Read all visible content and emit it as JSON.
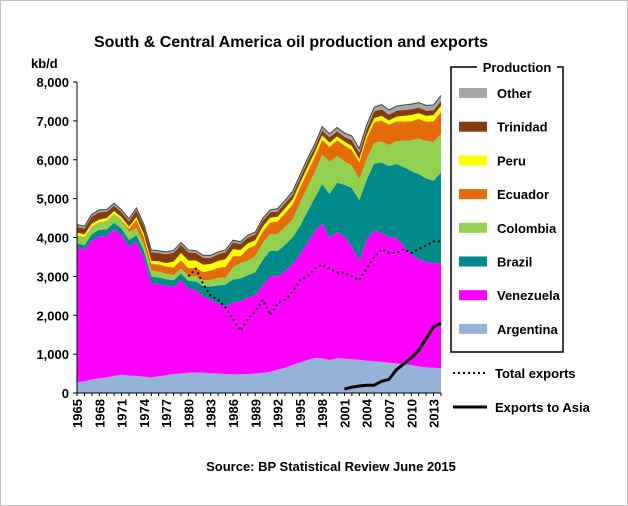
{
  "chart_data": {
    "type": "area",
    "title": "South & Central America oil production and exports",
    "ylabel": "kb/d",
    "ylim": [
      0,
      8000
    ],
    "yticks": [
      "0",
      "1,000",
      "2,000",
      "3,000",
      "4,000",
      "5,000",
      "6,000",
      "7,000",
      "8,000"
    ],
    "x": [
      1965,
      1966,
      1967,
      1968,
      1969,
      1970,
      1971,
      1972,
      1973,
      1974,
      1975,
      1976,
      1977,
      1978,
      1979,
      1980,
      1981,
      1982,
      1983,
      1984,
      1985,
      1986,
      1987,
      1988,
      1989,
      1990,
      1991,
      1992,
      1993,
      1994,
      1995,
      1996,
      1997,
      1998,
      1999,
      2000,
      2001,
      2002,
      2003,
      2004,
      2005,
      2006,
      2007,
      2008,
      2009,
      2010,
      2011,
      2012,
      2013,
      2014
    ],
    "xticks": [
      "1965",
      "1968",
      "1971",
      "1974",
      "1977",
      "1980",
      "1983",
      "1986",
      "1989",
      "1992",
      "1995",
      "1998",
      "2001",
      "2004",
      "2007",
      "2010",
      "2013"
    ],
    "legend_title": "Production",
    "legend_position": "right",
    "grid": false,
    "series": [
      {
        "name": "Argentina",
        "color": "#95b3d7",
        "values": [
          280,
          300,
          350,
          380,
          400,
          440,
          470,
          450,
          440,
          420,
          400,
          430,
          460,
          490,
          500,
          520,
          530,
          520,
          510,
          500,
          490,
          480,
          480,
          490,
          500,
          520,
          540,
          600,
          650,
          720,
          780,
          850,
          900,
          890,
          850,
          900,
          880,
          870,
          860,
          830,
          820,
          800,
          780,
          760,
          740,
          720,
          680,
          660,
          650,
          640
        ]
      },
      {
        "name": "Venezuela",
        "color": "#ff00ff",
        "values": [
          3470,
          3400,
          3580,
          3650,
          3640,
          3770,
          3590,
          3320,
          3450,
          3060,
          2420,
          2370,
          2300,
          2240,
          2400,
          2170,
          2120,
          1960,
          1890,
          1800,
          1740,
          1850,
          1880,
          1970,
          2010,
          2250,
          2470,
          2400,
          2490,
          2590,
          2790,
          3010,
          3250,
          3480,
          3130,
          3240,
          3140,
          2900,
          2550,
          3120,
          3360,
          3320,
          3230,
          3230,
          3040,
          2850,
          2760,
          2710,
          2700,
          2690
        ]
      },
      {
        "name": "Brazil",
        "color": "#008b8b",
        "values": [
          100,
          100,
          160,
          170,
          170,
          170,
          170,
          170,
          170,
          180,
          180,
          170,
          170,
          170,
          170,
          190,
          220,
          270,
          340,
          470,
          560,
          590,
          590,
          570,
          600,
          650,
          650,
          650,
          670,
          690,
          720,
          800,
          870,
          1000,
          1140,
          1270,
          1340,
          1500,
          1550,
          1540,
          1720,
          1810,
          1830,
          1900,
          2030,
          2140,
          2190,
          2150,
          2110,
          2350
        ]
      },
      {
        "name": "Colombia",
        "color": "#92d050",
        "values": [
          200,
          200,
          190,
          180,
          210,
          220,
          220,
          200,
          190,
          170,
          160,
          150,
          140,
          130,
          130,
          130,
          140,
          150,
          170,
          190,
          180,
          310,
          390,
          380,
          410,
          440,
          430,
          440,
          460,
          460,
          590,
          630,
          660,
          760,
          830,
          690,
          600,
          580,
          550,
          530,
          530,
          540,
          540,
          590,
          680,
          790,
          920,
          960,
          1000,
          990
        ]
      },
      {
        "name": "Ecuador",
        "color": "#e46c0a",
        "values": [
          10,
          10,
          10,
          10,
          10,
          10,
          10,
          80,
          210,
          180,
          160,
          190,
          180,
          200,
          210,
          200,
          210,
          210,
          240,
          260,
          280,
          290,
          180,
          300,
          280,
          290,
          300,
          320,
          350,
          380,
          390,
          390,
          390,
          380,
          380,
          400,
          410,
          400,
          420,
          530,
          530,
          540,
          520,
          510,
          490,
          490,
          500,
          500,
          530,
          560
        ]
      },
      {
        "name": "Peru",
        "color": "#ffff00",
        "values": [
          70,
          70,
          70,
          70,
          70,
          70,
          60,
          60,
          70,
          80,
          80,
          80,
          90,
          150,
          190,
          200,
          190,
          190,
          170,
          180,
          190,
          180,
          160,
          140,
          130,
          130,
          120,
          120,
          130,
          130,
          120,
          120,
          120,
          120,
          110,
          100,
          100,
          100,
          90,
          90,
          110,
          120,
          110,
          120,
          150,
          160,
          150,
          150,
          160,
          160
        ]
      },
      {
        "name": "Trinidad",
        "color": "#843c0c",
        "values": [
          140,
          150,
          180,
          190,
          160,
          140,
          130,
          140,
          170,
          190,
          220,
          210,
          230,
          230,
          210,
          210,
          190,
          180,
          160,
          170,
          180,
          170,
          150,
          150,
          150,
          150,
          140,
          140,
          130,
          130,
          130,
          140,
          130,
          130,
          140,
          130,
          120,
          150,
          160,
          150,
          170,
          170,
          150,
          150,
          150,
          150,
          140,
          130,
          120,
          120
        ]
      },
      {
        "name": "Other",
        "color": "#a6a6a6",
        "values": [
          60,
          60,
          60,
          60,
          60,
          60,
          60,
          60,
          60,
          60,
          60,
          60,
          60,
          60,
          60,
          60,
          60,
          60,
          60,
          60,
          60,
          60,
          60,
          60,
          60,
          60,
          60,
          70,
          70,
          80,
          80,
          80,
          80,
          90,
          90,
          100,
          100,
          110,
          110,
          110,
          110,
          120,
          120,
          120,
          130,
          130,
          130,
          140,
          140,
          140
        ]
      }
    ],
    "lines": [
      {
        "name": "Total exports",
        "style": "dotted",
        "color": "#000000",
        "values": [
          null,
          null,
          null,
          null,
          null,
          null,
          null,
          null,
          null,
          null,
          null,
          null,
          null,
          null,
          null,
          3000,
          3200,
          2800,
          2500,
          2400,
          2200,
          1900,
          1600,
          1900,
          2100,
          2400,
          2000,
          2300,
          2400,
          2600,
          2900,
          3000,
          3200,
          3300,
          3200,
          3100,
          3100,
          3000,
          2900,
          3200,
          3500,
          3700,
          3600,
          3600,
          3700,
          3600,
          3700,
          3800,
          3900,
          3900
        ]
      },
      {
        "name": "Exports to Asia",
        "style": "solid",
        "color": "#000000",
        "values": [
          null,
          null,
          null,
          null,
          null,
          null,
          null,
          null,
          null,
          null,
          null,
          null,
          null,
          null,
          null,
          null,
          null,
          null,
          null,
          null,
          null,
          null,
          null,
          null,
          null,
          null,
          null,
          null,
          null,
          null,
          null,
          null,
          null,
          null,
          null,
          null,
          100,
          150,
          180,
          200,
          200,
          300,
          350,
          600,
          750,
          900,
          1100,
          1400,
          1700,
          1800
        ]
      }
    ],
    "source": "Source: BP Statistical Review June 2015"
  }
}
